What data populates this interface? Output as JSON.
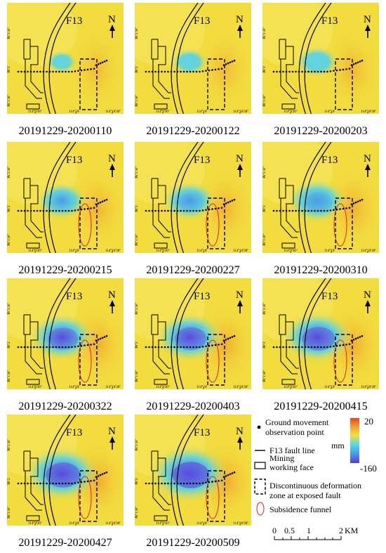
{
  "panels": [
    {
      "caption": "20191229-20200110",
      "intensity": 0.15,
      "funnel": false
    },
    {
      "caption": "20191229-20200122",
      "intensity": 0.25,
      "funnel": false
    },
    {
      "caption": "20191229-20200203",
      "intensity": 0.35,
      "funnel": false
    },
    {
      "caption": "20191229-20200215",
      "intensity": 0.5,
      "funnel": true
    },
    {
      "caption": "20191229-20200227",
      "intensity": 0.55,
      "funnel": true
    },
    {
      "caption": "20191229-20200310",
      "intensity": 0.65,
      "funnel": true
    },
    {
      "caption": "20191229-20200322",
      "intensity": 0.75,
      "funnel": true
    },
    {
      "caption": "20191229-20200403",
      "intensity": 0.8,
      "funnel": true
    },
    {
      "caption": "20191229-20200415",
      "intensity": 0.85,
      "funnel": true
    },
    {
      "caption": "20191229-20200427",
      "intensity": 0.92,
      "funnel": true
    },
    {
      "caption": "20191229-20200509",
      "intensity": 1.0,
      "funnel": true
    }
  ],
  "map_labels": {
    "fault": "F13",
    "north": "N",
    "lon_ticks": [
      "114°9'30\"",
      "114°10'",
      "114°10'30\""
    ],
    "lat_ticks": [
      "36°2'30\"",
      "36°2'",
      "36°1'30\""
    ]
  },
  "legend": {
    "ground_point_line1": "Ground movement",
    "ground_point_line2": "observation point",
    "fault_line": "F13 fault line",
    "mining_line1": "Mining",
    "mining_line2": "working face",
    "zone_line1": "Discontinuous deformation",
    "zone_line2": "zone at exposed fault",
    "funnel": "Subsidence funnel",
    "colorbar_max": "20",
    "colorbar_unit": "mm",
    "colorbar_min": "-160"
  },
  "scale_bar": {
    "ticks": [
      "0",
      "0.5",
      "1",
      "2"
    ],
    "unit": "KM"
  },
  "colors": {
    "max": "#e8451e",
    "mid": "#4fd6e8",
    "min": "#5b3fd6",
    "bg": "#f4e040"
  }
}
